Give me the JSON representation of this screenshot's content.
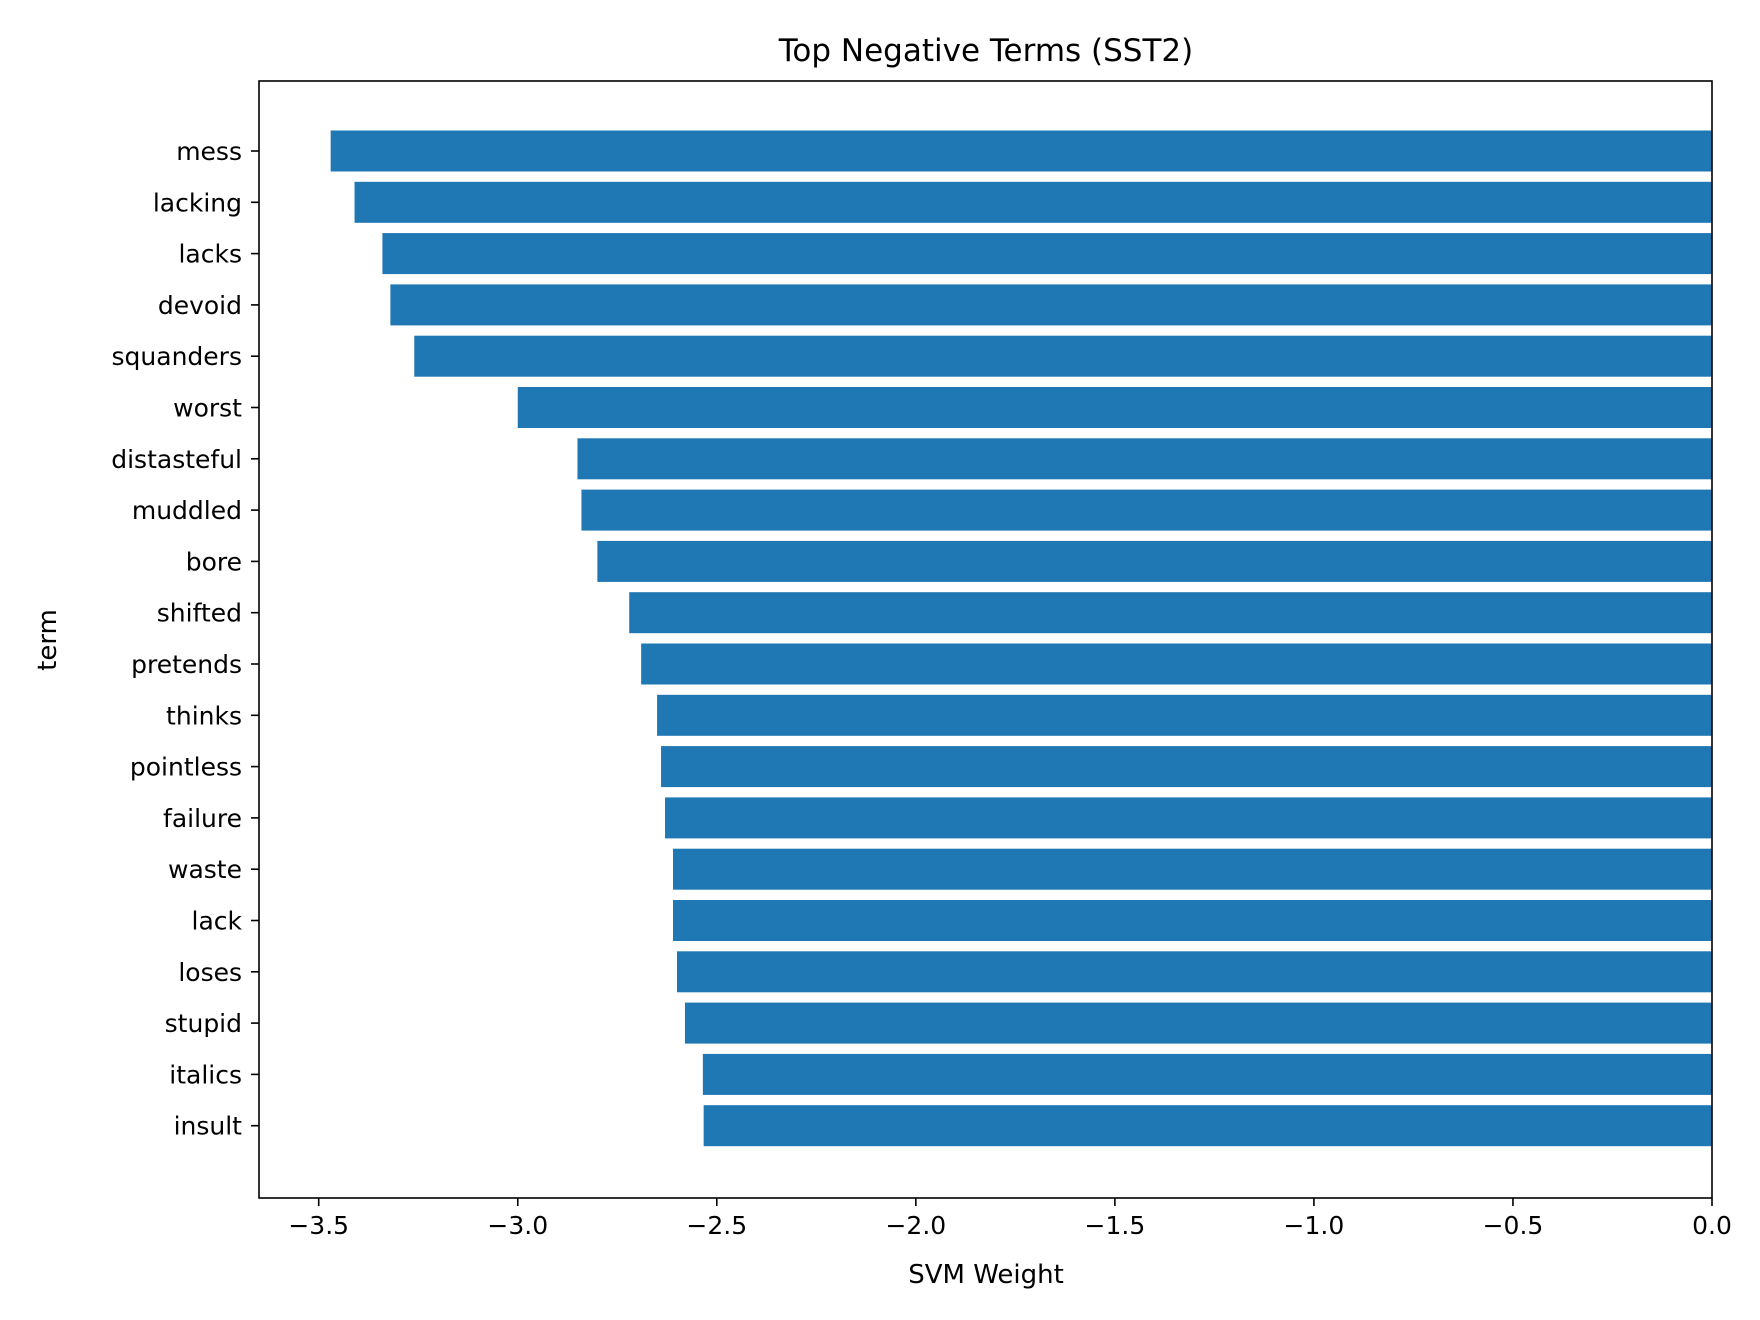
{
  "chart_data": {
    "type": "bar",
    "orientation": "horizontal",
    "title": "Top Negative Terms (SST2)",
    "xlabel": "SVM Weight",
    "ylabel": "term",
    "xlim": [
      -3.65,
      0.0
    ],
    "xticks": [
      -3.5,
      -3.0,
      -2.5,
      -2.0,
      -1.5,
      -1.0,
      -0.5,
      0.0
    ],
    "xtick_labels": [
      "−3.5",
      "−3.0",
      "−2.5",
      "−2.0",
      "−1.5",
      "−1.0",
      "−0.5",
      "0.0"
    ],
    "categories": [
      "mess",
      "lacking",
      "lacks",
      "devoid",
      "squanders",
      "worst",
      "distasteful",
      "muddled",
      "bore",
      "shifted",
      "pretends",
      "thinks",
      "pointless",
      "failure",
      "waste",
      "lack",
      "loses",
      "stupid",
      "italics",
      "insult"
    ],
    "values": [
      -3.47,
      -3.41,
      -3.34,
      -3.32,
      -3.26,
      -3.0,
      -2.85,
      -2.84,
      -2.8,
      -2.72,
      -2.69,
      -2.65,
      -2.64,
      -2.63,
      -2.61,
      -2.61,
      -2.6,
      -2.58,
      -2.535,
      -2.533
    ],
    "bar_color": "#1f77b4",
    "grid": false,
    "legend": "none"
  }
}
